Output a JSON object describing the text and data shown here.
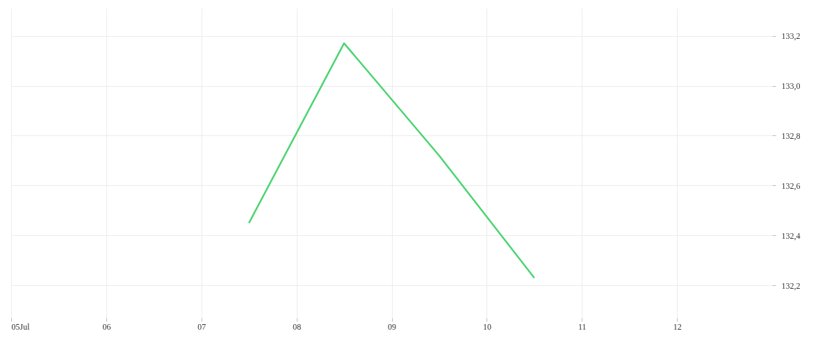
{
  "chart_data": {
    "type": "line",
    "x": [
      "--07-07T12:00",
      "--07-08T12:00",
      "--07-09T12:00",
      "--07-10T12:00"
    ],
    "series": [
      {
        "color": "#4cd471",
        "values": [
          132.45,
          133.17,
          132.72,
          132.23
        ]
      }
    ],
    "xlim": [
      "--07-05",
      "--07-13"
    ],
    "xticks": [
      {
        "value": "--07-05",
        "label": "05Jul"
      },
      {
        "value": "--07-06",
        "label": "06"
      },
      {
        "value": "--07-07",
        "label": "07"
      },
      {
        "value": "--07-08",
        "label": "08"
      },
      {
        "value": "--07-09",
        "label": "09"
      },
      {
        "value": "--07-10",
        "label": "10"
      },
      {
        "value": "--07-11",
        "label": "11"
      },
      {
        "value": "--07-12",
        "label": "12"
      }
    ],
    "ylim": [
      132.07,
      133.31
    ],
    "yticks": [
      {
        "value": 132.2,
        "label": "132,2"
      },
      {
        "value": 132.4,
        "label": "132,4"
      },
      {
        "value": 132.6,
        "label": "132,6"
      },
      {
        "value": 132.8,
        "label": "132,8"
      },
      {
        "value": 133.0,
        "label": "133,0"
      },
      {
        "value": 133.2,
        "label": "133,2"
      }
    ],
    "grid": true,
    "marker": "none",
    "line_style": "solid"
  }
}
